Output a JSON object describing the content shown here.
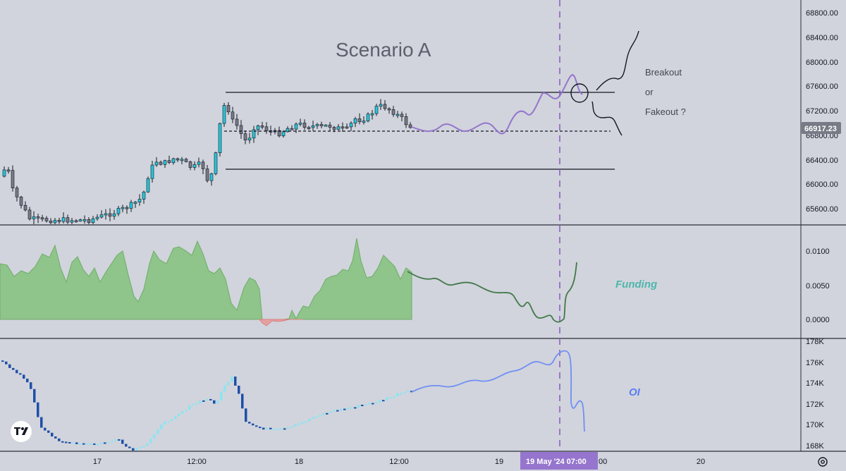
{
  "annotations": {
    "title": "Scenario A",
    "breakout": "Breakout",
    "or": "or",
    "fakeout": "Fakeout ?",
    "funding": "Funding",
    "oi": "OI"
  },
  "colors": {
    "background": "#d1d4dc",
    "up_candle": "#26c6da",
    "down_candle": "#787b86",
    "funding_pos": "#8fc48a",
    "funding_neg": "#e6a0a0",
    "oi_up": "#8fe3f0",
    "oi_down": "#1e4fa8",
    "forecast_price": "#9575cd",
    "forecast_funding": "#43784a",
    "forecast_oi": "#6f8ff5",
    "dashed_vertical": "#8e5cc4",
    "funding_label": "#4db6ac",
    "oi_label": "#5c7cf5",
    "time_marker_bg": "#9575cd"
  },
  "price_axis": {
    "ticks": [
      "68800.00",
      "68400.00",
      "68000.00",
      "67600.00",
      "67200.00",
      "66800.00",
      "66400.00",
      "66000.00",
      "65600.00"
    ],
    "last_price": "66917.23"
  },
  "funding_axis": {
    "ticks": [
      "0.0100",
      "0.0050",
      "0.0000"
    ]
  },
  "oi_axis": {
    "ticks": [
      "178K",
      "176K",
      "174K",
      "172K",
      "170K",
      "168K"
    ]
  },
  "time_axis": {
    "ticks": [
      "17",
      "12:00",
      "18",
      "12:00",
      "19",
      "20"
    ],
    "partial_tick": ":00",
    "marker": "19 May '24   07:00"
  },
  "logo_icon": "tradingview-logo",
  "settings_icon": "gear-icon",
  "chart_data": [
    {
      "type": "candlestick",
      "title": "Scenario A",
      "series_name": "",
      "ylim": [
        65400,
        68900
      ],
      "levels": {
        "range_high": 67500,
        "range_low": 66250,
        "mid": 66850
      },
      "last_price": 66917.23
    },
    {
      "type": "area",
      "series_name": "Funding",
      "ylim": [
        -0.002,
        0.0125
      ],
      "note": "funding rate, positive green, negative red, with hand-drawn forecast"
    },
    {
      "type": "candlestick",
      "series_name": "OI",
      "ylim": [
        167500,
        178200
      ],
      "note": "open interest with hand-drawn forecast"
    }
  ]
}
